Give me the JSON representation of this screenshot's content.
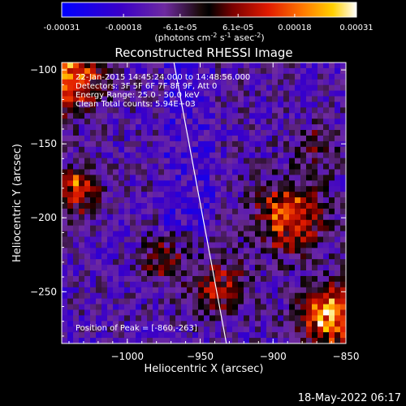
{
  "colorbar": {
    "ticks": [
      "-0.00031",
      "-0.00018",
      "-6.1e-05",
      "6.1e-05",
      "0.00018",
      "0.00031"
    ],
    "tick_values": [
      -0.00031,
      -0.00018,
      -6.1e-05,
      6.1e-05,
      0.00018,
      0.00031
    ],
    "range": [
      -0.00031,
      0.00031
    ],
    "unit_main": "(photons cm",
    "unit_sup1": "-2",
    "unit_mid": " s",
    "unit_sup2": "-1",
    "unit_mid2": " asec",
    "unit_sup3": "-2",
    "unit_end": ")",
    "colors": [
      "#0000ff",
      "#3a00c8",
      "#6e2aa0",
      "#1a0a0a",
      "#000000",
      "#7a0000",
      "#e01a00",
      "#ff7a00",
      "#ffd000",
      "#ffffff"
    ]
  },
  "chart_data": {
    "type": "heatmap",
    "title": "Reconstructed RHESSI Image",
    "xlabel": "Heliocentric X (arcsec)",
    "ylabel": "Heliocentric Y (arcsec)",
    "xlim": [
      -1045,
      -850
    ],
    "ylim": [
      -285,
      -95
    ],
    "xticks": [
      -1000,
      -950,
      -900,
      -850
    ],
    "xtick_labels": [
      "−1000",
      "−950",
      "−900",
      "−850"
    ],
    "yticks": [
      -250,
      -200,
      -150,
      -100
    ],
    "ytick_labels": [
      "−250",
      "−200",
      "−150",
      "−100"
    ],
    "annotations": [
      "22-Jan-2015 14:45:24.000 to 14:48:56.000",
      "Detectors: 3F 5F 6F 7F 8F 9F, Att 0",
      "Energy Range: 25.0 - 50.0 keV",
      "Clean     Total counts: 5.94E+03"
    ],
    "peak_label": "Position of Peak = [-860,-263]",
    "peak_position": [
      -860,
      -263
    ],
    "limb_line": [
      [
        -968,
        -95
      ],
      [
        -932,
        -285
      ]
    ]
  },
  "footer": {
    "timestamp": "18-May-2022 06:17"
  }
}
